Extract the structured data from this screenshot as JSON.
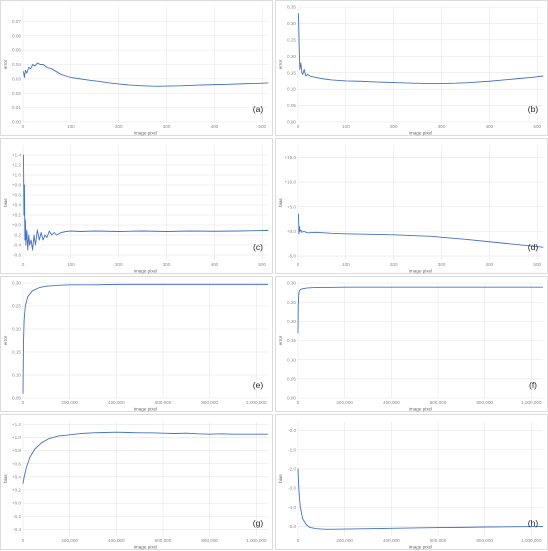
{
  "style": {
    "line_color": "#4472c4",
    "grid_color": "#e6e6e6",
    "frame_color": "#dcdcdc"
  },
  "chart_data": [
    {
      "id": "a",
      "type": "line",
      "panel_label": "(a)",
      "xlabel": "image pixel",
      "ylabel": "error",
      "xlim": [
        0,
        512
      ],
      "ylim": [
        0,
        0.08
      ],
      "xticks": [
        0,
        100,
        200,
        300,
        400,
        500
      ],
      "xtick_labels": [
        "0",
        "100",
        "200",
        "300",
        "400",
        "500"
      ],
      "yticks": [
        0,
        0.01,
        0.02,
        0.03,
        0.04,
        0.05,
        0.06,
        0.07
      ],
      "ytick_labels": [
        "0.00",
        "0.01",
        "0.02",
        "0.03",
        "0.04",
        "0.05",
        "0.06",
        "0.07"
      ],
      "grid": true,
      "legend": "none",
      "series": [
        {
          "x": [
            1,
            3,
            5,
            8,
            12,
            16,
            20,
            25,
            30,
            36,
            42,
            50,
            60,
            70,
            80,
            90,
            100,
            120,
            140,
            160,
            180,
            200,
            220,
            250,
            280,
            300,
            330,
            360,
            400,
            430,
            460,
            490,
            512
          ],
          "y": [
            0.035,
            0.031,
            0.036,
            0.034,
            0.038,
            0.037,
            0.04,
            0.039,
            0.041,
            0.04,
            0.04,
            0.038,
            0.037,
            0.035,
            0.033,
            0.032,
            0.031,
            0.03,
            0.029,
            0.0282,
            0.0272,
            0.0265,
            0.0258,
            0.0252,
            0.0248,
            0.025,
            0.0252,
            0.0256,
            0.026,
            0.0262,
            0.0266,
            0.0268,
            0.0272
          ]
        }
      ]
    },
    {
      "id": "b",
      "type": "line",
      "panel_label": "(b)",
      "xlabel": "image pixel",
      "ylabel": "error",
      "xlim": [
        0,
        512
      ],
      "ylim": [
        0,
        0.35
      ],
      "xticks": [
        0,
        100,
        200,
        300,
        400,
        500
      ],
      "xtick_labels": [
        "0",
        "100",
        "200",
        "300",
        "400",
        "500"
      ],
      "yticks": [
        0,
        0.05,
        0.1,
        0.15,
        0.2,
        0.25,
        0.3,
        0.35
      ],
      "ytick_labels": [
        "0.00",
        "0.05",
        "0.10",
        "0.15",
        "0.20",
        "0.25",
        "0.30",
        "0.35"
      ],
      "grid": true,
      "legend": "none",
      "series": [
        {
          "x": [
            1,
            2,
            3,
            4,
            6,
            8,
            10,
            13,
            16,
            20,
            25,
            30,
            40,
            50,
            70,
            100,
            130,
            160,
            200,
            240,
            280,
            300,
            330,
            360,
            400,
            430,
            460,
            490,
            512
          ],
          "y": [
            0.33,
            0.26,
            0.2,
            0.16,
            0.18,
            0.15,
            0.145,
            0.16,
            0.14,
            0.145,
            0.14,
            0.138,
            0.135,
            0.132,
            0.128,
            0.125,
            0.124,
            0.122,
            0.12,
            0.118,
            0.117,
            0.117,
            0.118,
            0.12,
            0.124,
            0.128,
            0.132,
            0.136,
            0.14
          ]
        }
      ]
    },
    {
      "id": "c",
      "type": "line",
      "panel_label": "(c)",
      "xlabel": "image pixel",
      "ylabel": "bias",
      "xlim": [
        0,
        512
      ],
      "ylim": [
        -0.7,
        1.6
      ],
      "xticks": [
        0,
        100,
        200,
        300,
        400,
        500
      ],
      "xtick_labels": [
        "0",
        "100",
        "200",
        "300",
        "400",
        "500"
      ],
      "yticks": [
        -0.6,
        -0.4,
        -0.2,
        0,
        0.2,
        0.4,
        0.6,
        0.8,
        1.0,
        1.2,
        1.4
      ],
      "ytick_labels": [
        "-0.6",
        "-0.4",
        "-0.2",
        "+0.0",
        "+0.2",
        "+0.4",
        "+0.6",
        "+0.8",
        "+1.0",
        "+1.2",
        "+1.4"
      ],
      "grid": true,
      "legend": "none",
      "series": [
        {
          "x": [
            1,
            2,
            3,
            4,
            5,
            6,
            8,
            10,
            12,
            14,
            17,
            20,
            23,
            26,
            30,
            34,
            38,
            42,
            46,
            50,
            55,
            60,
            65,
            70,
            80,
            90,
            100,
            120,
            150,
            200,
            250,
            300,
            350,
            400,
            450,
            512
          ],
          "y": [
            1.4,
            0.2,
            0.8,
            -0.3,
            0.1,
            -0.4,
            -0.1,
            -0.5,
            -0.2,
            -0.4,
            -0.3,
            -0.5,
            -0.2,
            -0.4,
            -0.1,
            -0.3,
            -0.15,
            -0.3,
            -0.2,
            -0.25,
            -0.12,
            -0.2,
            -0.15,
            -0.2,
            -0.15,
            -0.13,
            -0.12,
            -0.13,
            -0.12,
            -0.13,
            -0.12,
            -0.13,
            -0.12,
            -0.125,
            -0.12,
            -0.11
          ]
        }
      ]
    },
    {
      "id": "d",
      "type": "line",
      "panel_label": "(d)",
      "xlabel": "image pixel",
      "ylabel": "bias",
      "xlim": [
        0,
        512
      ],
      "ylim": [
        -5.8,
        17.5
      ],
      "xticks": [
        0,
        100,
        200,
        300,
        400,
        500
      ],
      "xtick_labels": [
        "0",
        "100",
        "200",
        "300",
        "400",
        "500"
      ],
      "yticks": [
        -5,
        0,
        5,
        10,
        15
      ],
      "ytick_labels": [
        "-5.0",
        "+0.0",
        "+5.0",
        "+10.0",
        "+15.0"
      ],
      "grid": true,
      "legend": "none",
      "series": [
        {
          "x": [
            1,
            2,
            3,
            4,
            6,
            8,
            12,
            20,
            40,
            70,
            100,
            150,
            200,
            250,
            280,
            300,
            350,
            400,
            450,
            512
          ],
          "y": [
            3.5,
            -0.5,
            1.0,
            0.0,
            0.3,
            -0.2,
            0.0,
            -0.3,
            -0.2,
            -0.4,
            -0.5,
            -0.6,
            -0.7,
            -0.9,
            -1.0,
            -1.2,
            -1.6,
            -2.1,
            -2.6,
            -3.2
          ]
        }
      ]
    },
    {
      "id": "e",
      "type": "line",
      "panel_label": "(e)",
      "xlabel": "image pixel",
      "ylabel": "error",
      "xlim": [
        0,
        1050000
      ],
      "ylim": [
        0.05,
        0.3
      ],
      "xticks": [
        0,
        200000,
        400000,
        600000,
        800000,
        1000000
      ],
      "xtick_labels": [
        "0",
        "200,000",
        "400,000",
        "600,000",
        "800,000",
        "1,000,000"
      ],
      "yticks": [
        0.05,
        0.1,
        0.15,
        0.2,
        0.25,
        0.3
      ],
      "ytick_labels": [
        "0.05",
        "0.10",
        "0.15",
        "0.20",
        "0.25",
        "0.30"
      ],
      "grid": true,
      "legend": "none",
      "series": [
        {
          "x": [
            0,
            2000,
            5000,
            10000,
            20000,
            40000,
            70000,
            100000,
            150000,
            200000,
            300000,
            400000,
            500000,
            600000,
            700000,
            800000,
            900000,
            1000000,
            1048576
          ],
          "y": [
            0.06,
            0.17,
            0.22,
            0.25,
            0.27,
            0.283,
            0.29,
            0.293,
            0.295,
            0.296,
            0.296,
            0.297,
            0.297,
            0.297,
            0.297,
            0.297,
            0.297,
            0.297,
            0.297
          ]
        }
      ]
    },
    {
      "id": "f",
      "type": "line",
      "panel_label": "(f)",
      "xlabel": "image pixel",
      "ylabel": "error",
      "xlim": [
        0,
        1050000
      ],
      "ylim": [
        0,
        0.3
      ],
      "xticks": [
        0,
        200000,
        400000,
        600000,
        800000,
        1000000
      ],
      "xtick_labels": [
        "0",
        "200,000",
        "400,000",
        "600,000",
        "800,000",
        "1,000,000"
      ],
      "yticks": [
        0,
        0.05,
        0.1,
        0.15,
        0.2,
        0.25,
        0.3
      ],
      "ytick_labels": [
        "0.00",
        "0.05",
        "0.10",
        "0.15",
        "0.20",
        "0.25",
        "0.30"
      ],
      "grid": true,
      "legend": "none",
      "series": [
        {
          "x": [
            0,
            1000,
            3000,
            6000,
            10000,
            20000,
            40000,
            70000,
            100000,
            200000,
            400000,
            600000,
            800000,
            1000000,
            1048576
          ],
          "y": [
            0.17,
            0.24,
            0.27,
            0.28,
            0.283,
            0.285,
            0.287,
            0.288,
            0.288,
            0.289,
            0.289,
            0.289,
            0.289,
            0.289,
            0.289
          ]
        }
      ]
    },
    {
      "id": "g",
      "type": "line",
      "panel_label": "(g)",
      "xlabel": "image pixel",
      "ylabel": "bias",
      "xlim": [
        0,
        1050000
      ],
      "ylim": [
        -0.5,
        1.25
      ],
      "xticks": [
        0,
        200000,
        400000,
        600000,
        800000,
        1000000
      ],
      "xtick_labels": [
        "0",
        "200,000",
        "400,000",
        "600,000",
        "800,000",
        "1,000,000"
      ],
      "yticks": [
        -0.4,
        -0.2,
        0,
        0.2,
        0.4,
        0.6,
        0.8,
        1.0,
        1.2
      ],
      "ytick_labels": [
        "-0.4",
        "-0.2",
        "+0.0",
        "+0.2",
        "+0.4",
        "+0.6",
        "+0.8",
        "+1.0",
        "+1.2"
      ],
      "grid": true,
      "legend": "none",
      "series": [
        {
          "x": [
            0,
            5000,
            15000,
            30000,
            50000,
            80000,
            110000,
            150000,
            200000,
            250000,
            300000,
            350000,
            400000,
            450000,
            500000,
            550000,
            600000,
            650000,
            700000,
            750000,
            800000,
            850000,
            900000,
            950000,
            1000000,
            1048576
          ],
          "y": [
            0.3,
            0.4,
            0.55,
            0.7,
            0.82,
            0.92,
            0.98,
            1.02,
            1.04,
            1.06,
            1.07,
            1.075,
            1.08,
            1.075,
            1.07,
            1.07,
            1.065,
            1.06,
            1.065,
            1.055,
            1.05,
            1.055,
            1.05,
            1.05,
            1.05,
            1.05
          ]
        }
      ]
    },
    {
      "id": "h",
      "type": "line",
      "panel_label": "(h)",
      "xlabel": "image pixel",
      "ylabel": "bias",
      "xlim": [
        0,
        1050000
      ],
      "ylim": [
        -5.5,
        0.5
      ],
      "xticks": [
        0,
        200000,
        400000,
        600000,
        800000,
        1000000
      ],
      "xtick_labels": [
        "0",
        "200,000",
        "400,000",
        "600,000",
        "800,000",
        "1,000,000"
      ],
      "yticks": [
        -5,
        -4,
        -3,
        -2,
        -1,
        0
      ],
      "ytick_labels": [
        "-5.0",
        "-4.0",
        "-3.0",
        "-2.0",
        "-1.0",
        "-0.0"
      ],
      "grid": true,
      "legend": "none",
      "series": [
        {
          "x": [
            0,
            2000,
            5000,
            10000,
            20000,
            35000,
            50000,
            80000,
            120000,
            200000,
            300000,
            400000,
            500000,
            600000,
            700000,
            800000,
            900000,
            1000000,
            1048576
          ],
          "y": [
            -2.0,
            -2.6,
            -3.3,
            -4.0,
            -4.6,
            -4.9,
            -5.05,
            -5.12,
            -5.15,
            -5.14,
            -5.12,
            -5.1,
            -5.08,
            -5.06,
            -5.05,
            -5.03,
            -5.02,
            -5.01,
            -5.0
          ]
        }
      ]
    }
  ]
}
